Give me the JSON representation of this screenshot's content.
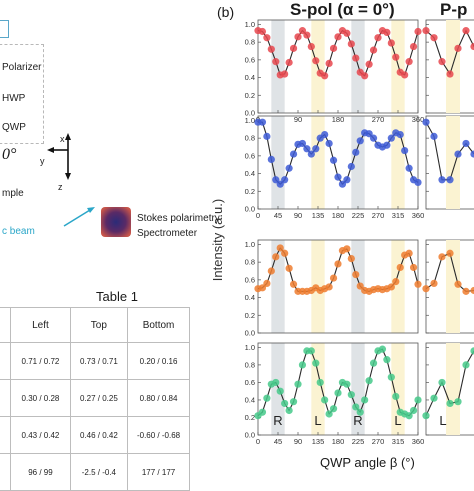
{
  "left": {
    "components": [
      "Polarizer",
      "HWP",
      "QWP"
    ],
    "angle": "0°",
    "axes": {
      "x": "x",
      "y": "y",
      "z": "z"
    },
    "sample_fragment": "mple",
    "beam_fragment": "c beam",
    "detector_line1": "Stokes polarimetry",
    "detector_line2": "Spectrometer",
    "colors": {
      "beam": "#2aa6c8",
      "detector": "#7a2a3a"
    }
  },
  "table": {
    "title": "Table 1",
    "headers": [
      "",
      "Left",
      "Top",
      "Bottom"
    ],
    "rows": [
      [
        "",
        "0.71 / 0.72",
        "0.73 / 0.71",
        "0.20 / 0.16"
      ],
      [
        "",
        "0.30 / 0.28",
        "0.27 / 0.25",
        "0.80 / 0.84"
      ],
      [
        "",
        "0.43 / 0.42",
        "0.46 / 0.42",
        "-0.60 / -0.68"
      ],
      [
        "",
        "96 / 99",
        "-2.5 / -0.4",
        "177 / 177"
      ]
    ]
  },
  "figure": {
    "panel_label": "(b)",
    "col1_title": "S-pol (α = 0°)",
    "col2_title": "P-p",
    "ylabel": "Intensity (a.u.)",
    "xlabel": "QWP angle β (°)",
    "region_labels": [
      "R",
      "L",
      "R",
      "L"
    ],
    "col2_region_label": "L",
    "bands": {
      "R": [
        30,
        60
      ],
      "L": [
        120,
        150
      ],
      "R2": [
        210,
        240
      ],
      "L2": [
        300,
        330
      ],
      "color_R": "#dfe3e6",
      "color_L": "#fbf3d2"
    }
  },
  "chart_data": [
    {
      "type": "scatter",
      "title": "S-pol (α = 0°)",
      "panel": 1,
      "xlim": [
        0,
        360
      ],
      "ylim": [
        0.0,
        1.05
      ],
      "xticks": [
        0,
        45,
        90,
        135,
        180,
        225,
        270,
        315,
        360
      ],
      "yticks": [
        0.0,
        0.2,
        0.4,
        0.6,
        0.8,
        1.0
      ],
      "color": "#e8474d",
      "x": [
        0,
        10,
        20,
        30,
        40,
        50,
        60,
        70,
        80,
        90,
        100,
        110,
        120,
        130,
        140,
        150,
        160,
        170,
        180,
        190,
        200,
        210,
        220,
        230,
        240,
        250,
        260,
        270,
        280,
        290,
        300,
        310,
        320,
        330,
        340,
        350,
        360
      ],
      "y": [
        0.93,
        0.92,
        0.85,
        0.72,
        0.58,
        0.43,
        0.44,
        0.57,
        0.73,
        0.86,
        0.93,
        0.88,
        0.75,
        0.59,
        0.45,
        0.42,
        0.56,
        0.73,
        0.86,
        0.93,
        0.9,
        0.78,
        0.62,
        0.46,
        0.42,
        0.55,
        0.71,
        0.85,
        0.93,
        0.91,
        0.79,
        0.63,
        0.46,
        0.43,
        0.58,
        0.75,
        0.92
      ]
    },
    {
      "type": "scatter",
      "panel": 2,
      "xlim": [
        0,
        360
      ],
      "ylim": [
        0.0,
        1.05
      ],
      "xticks": [
        0,
        45,
        90,
        135,
        180,
        225,
        270,
        315,
        360
      ],
      "yticks": [
        0.0,
        0.2,
        0.4,
        0.6,
        0.8,
        1.0
      ],
      "color": "#3d5bd6",
      "x": [
        0,
        10,
        20,
        30,
        40,
        50,
        60,
        70,
        80,
        90,
        100,
        110,
        120,
        130,
        140,
        150,
        160,
        170,
        180,
        190,
        200,
        210,
        220,
        230,
        240,
        250,
        260,
        270,
        280,
        290,
        300,
        310,
        320,
        330,
        340,
        350,
        360
      ],
      "y": [
        0.98,
        0.98,
        0.82,
        0.56,
        0.33,
        0.28,
        0.33,
        0.46,
        0.62,
        0.73,
        0.74,
        0.68,
        0.62,
        0.68,
        0.8,
        0.84,
        0.74,
        0.55,
        0.36,
        0.28,
        0.33,
        0.48,
        0.64,
        0.77,
        0.86,
        0.85,
        0.8,
        0.72,
        0.7,
        0.72,
        0.8,
        0.86,
        0.84,
        0.66,
        0.46,
        0.33,
        0.3
      ]
    },
    {
      "type": "scatter",
      "panel": 3,
      "xlim": [
        0,
        360
      ],
      "ylim": [
        0.0,
        1.05
      ],
      "yticks": [
        0.0,
        0.2,
        0.4,
        0.6,
        0.8,
        1.0
      ],
      "color": "#ee7c2f",
      "x": [
        0,
        10,
        20,
        30,
        40,
        50,
        60,
        70,
        80,
        90,
        100,
        110,
        120,
        130,
        140,
        150,
        160,
        170,
        180,
        190,
        200,
        210,
        220,
        230,
        240,
        250,
        260,
        270,
        280,
        290,
        300,
        310,
        320,
        330,
        340,
        350,
        360
      ],
      "y": [
        0.5,
        0.51,
        0.56,
        0.7,
        0.86,
        0.96,
        0.9,
        0.73,
        0.55,
        0.47,
        0.47,
        0.47,
        0.48,
        0.51,
        0.48,
        0.5,
        0.52,
        0.62,
        0.78,
        0.93,
        0.95,
        0.84,
        0.66,
        0.53,
        0.48,
        0.47,
        0.49,
        0.5,
        0.49,
        0.5,
        0.52,
        0.58,
        0.74,
        0.88,
        0.9,
        0.74,
        0.55
      ]
    },
    {
      "type": "scatter",
      "panel": 4,
      "xlim": [
        0,
        360
      ],
      "ylim": [
        0.0,
        1.05
      ],
      "xticks": [
        0,
        45,
        90,
        135,
        180,
        225,
        270,
        315,
        360
      ],
      "yticks": [
        0.0,
        0.2,
        0.4,
        0.6,
        0.8,
        1.0
      ],
      "color": "#45c98a",
      "x": [
        0,
        10,
        20,
        30,
        40,
        50,
        60,
        70,
        80,
        90,
        100,
        110,
        120,
        130,
        140,
        150,
        160,
        170,
        180,
        190,
        200,
        210,
        220,
        230,
        240,
        250,
        260,
        270,
        280,
        290,
        300,
        310,
        320,
        330,
        340,
        350,
        360
      ],
      "y": [
        0.22,
        0.26,
        0.42,
        0.58,
        0.6,
        0.5,
        0.36,
        0.28,
        0.38,
        0.58,
        0.8,
        0.96,
        0.96,
        0.82,
        0.6,
        0.4,
        0.24,
        0.3,
        0.48,
        0.6,
        0.58,
        0.46,
        0.32,
        0.26,
        0.4,
        0.62,
        0.82,
        0.96,
        0.98,
        0.86,
        0.66,
        0.44,
        0.26,
        0.24,
        0.22,
        0.28,
        0.4
      ]
    }
  ]
}
